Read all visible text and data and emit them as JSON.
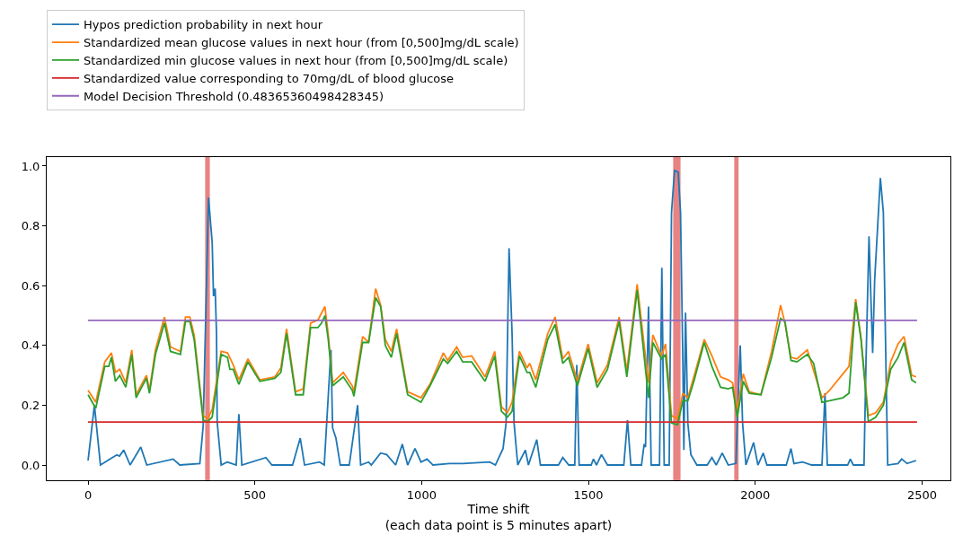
{
  "chart_data": {
    "type": "line",
    "xlabel": "Time shift\n(each data point is 5 minutes apart)",
    "xlim": [
      -124,
      2585
    ],
    "ylim": [
      -0.051,
      1.03
    ],
    "xticks": [
      0,
      500,
      1000,
      1500,
      2000,
      2500
    ],
    "yticks": [
      {
        "value": 0,
        "label": "0.0"
      },
      0.2,
      0.4,
      0.6,
      0.8,
      {
        "value": 1,
        "label": "1.0"
      }
    ],
    "grid": false,
    "legend": "top left",
    "marker": "none",
    "line_style": "solid",
    "bands": [
      {
        "axis": "x",
        "from": 351,
        "to": 365,
        "color": "#e88384"
      },
      {
        "axis": "x",
        "from": 1754,
        "to": 1776,
        "color": "#e88384"
      },
      {
        "axis": "x",
        "from": 1937,
        "to": 1950,
        "color": "#e88384"
      }
    ],
    "series": [
      {
        "name": "Hypos prediction probability in next hour",
        "color": "#1f77b4",
        "x": [
          0,
          19,
          37,
          86,
          94,
          107,
          126,
          158,
          176,
          255,
          275,
          335,
          345,
          361,
          372,
          376,
          381,
          385,
          387,
          399,
          417,
          444,
          452,
          461,
          533,
          551,
          613,
          636,
          649,
          694,
          708,
          728,
          733,
          743,
          756,
          783,
          808,
          817,
          841,
          849,
          877,
          895,
          922,
          942,
          958,
          980,
          998,
          1016,
          1034,
          1083,
          1123,
          1204,
          1221,
          1244,
          1253,
          1262,
          1271,
          1277,
          1288,
          1311,
          1320,
          1345,
          1356,
          1410,
          1423,
          1441,
          1459,
          1465,
          1472,
          1508,
          1515,
          1524,
          1539,
          1557,
          1606,
          1617,
          1627,
          1659,
          1667,
          1671,
          1680,
          1688,
          1700,
          1713,
          1720,
          1727,
          1742,
          1749,
          1758,
          1769,
          1776,
          1783,
          1786,
          1791,
          1798,
          1807,
          1825,
          1856,
          1870,
          1883,
          1901,
          1919,
          1942,
          1947,
          1955,
          1962,
          1972,
          1995,
          2008,
          2024,
          2035,
          2093,
          2107,
          2116,
          2142,
          2169,
          2200,
          2209,
          2216,
          2277,
          2285,
          2294,
          2326,
          2332,
          2341,
          2346,
          2352,
          2358,
          2375,
          2384,
          2393,
          2397,
          2428,
          2439,
          2455,
          2482
        ],
        "values": [
          0.015,
          0.2,
          0.0,
          0.034,
          0.03,
          0.05,
          0.0,
          0.06,
          0.0,
          0.02,
          0.0,
          0.005,
          0.13,
          0.895,
          0.745,
          0.565,
          0.59,
          0.44,
          0.144,
          0.0,
          0.01,
          0.0,
          0.17,
          0.0,
          0.025,
          0.0,
          0.0,
          0.09,
          0.0,
          0.01,
          0.0,
          0.385,
          0.124,
          0.09,
          0.0,
          0.0,
          0.2,
          0.0,
          0.01,
          0.0,
          0.04,
          0.035,
          0.0,
          0.07,
          0.0,
          0.055,
          0.01,
          0.02,
          0.0,
          0.005,
          0.005,
          0.01,
          0.0,
          0.055,
          0.14,
          0.725,
          0.44,
          0.14,
          0.0,
          0.05,
          0.0,
          0.085,
          0.0,
          0.0,
          0.025,
          0.0,
          0.0,
          0.335,
          0.0,
          0.0,
          0.02,
          0.0,
          0.035,
          0.0,
          0.0,
          0.15,
          0.0,
          0.0,
          0.07,
          0.06,
          0.53,
          0.0,
          0.0,
          0.0,
          0.66,
          0.0,
          0.0,
          0.845,
          0.985,
          0.98,
          0.845,
          0.345,
          0.05,
          0.51,
          0.14,
          0.035,
          0.0,
          0.0,
          0.025,
          0.0,
          0.04,
          0.0,
          0.005,
          0.165,
          0.4,
          0.14,
          0.0,
          0.075,
          0.0,
          0.04,
          0.0,
          0.0,
          0.055,
          0.005,
          0.01,
          0.0,
          0.0,
          0.24,
          0.0,
          0.0,
          0.02,
          0.0,
          0.0,
          0.345,
          0.765,
          0.58,
          0.375,
          0.62,
          0.96,
          0.845,
          0.255,
          0.0,
          0.005,
          0.02,
          0.005,
          0.015
        ]
      },
      {
        "name": "Standardized mean glucose values in next hour (from [0,500]mg/dL scale)",
        "color": "#ff7f0e",
        "x": [
          0,
          23,
          50,
          70,
          82,
          95,
          113,
          131,
          144,
          175,
          184,
          202,
          229,
          247,
          277,
          292,
          305,
          318,
          345,
          358,
          372,
          399,
          418,
          435,
          452,
          479,
          515,
          560,
          578,
          595,
          622,
          645,
          667,
          689,
          710,
          720,
          733,
          765,
          792,
          797,
          823,
          841,
          862,
          877,
          891,
          909,
          925,
          958,
          998,
          1025,
          1065,
          1078,
          1105,
          1123,
          1150,
          1190,
          1219,
          1239,
          1257,
          1271,
          1293,
          1316,
          1324,
          1342,
          1378,
          1400,
          1423,
          1440,
          1467,
          1499,
          1526,
          1557,
          1592,
          1615,
          1646,
          1680,
          1693,
          1719,
          1731,
          1749,
          1767,
          1783,
          1798,
          1816,
          1847,
          1870,
          1896,
          1919,
          1932,
          1946,
          1964,
          1982,
          2017,
          2049,
          2076,
          2089,
          2107,
          2125,
          2156,
          2200,
          2223,
          2263,
          2281,
          2301,
          2317,
          2339,
          2361,
          2384,
          2406,
          2428,
          2446,
          2469,
          2482
        ],
        "values": [
          0.25,
          0.21,
          0.345,
          0.375,
          0.31,
          0.32,
          0.275,
          0.385,
          0.235,
          0.3,
          0.25,
          0.385,
          0.495,
          0.395,
          0.38,
          0.495,
          0.495,
          0.435,
          0.165,
          0.155,
          0.185,
          0.38,
          0.375,
          0.335,
          0.285,
          0.355,
          0.285,
          0.295,
          0.325,
          0.455,
          0.245,
          0.255,
          0.475,
          0.485,
          0.53,
          0.435,
          0.275,
          0.31,
          0.265,
          0.245,
          0.43,
          0.41,
          0.59,
          0.535,
          0.42,
          0.38,
          0.455,
          0.245,
          0.225,
          0.27,
          0.375,
          0.35,
          0.395,
          0.36,
          0.365,
          0.295,
          0.38,
          0.195,
          0.175,
          0.21,
          0.38,
          0.325,
          0.34,
          0.285,
          0.44,
          0.495,
          0.355,
          0.38,
          0.28,
          0.405,
          0.275,
          0.335,
          0.495,
          0.315,
          0.605,
          0.275,
          0.435,
          0.365,
          0.405,
          0.165,
          0.155,
          0.24,
          0.225,
          0.295,
          0.42,
          0.365,
          0.295,
          0.285,
          0.275,
          0.185,
          0.305,
          0.245,
          0.235,
          0.38,
          0.535,
          0.475,
          0.36,
          0.355,
          0.385,
          0.225,
          0.25,
          0.305,
          0.33,
          0.555,
          0.425,
          0.165,
          0.175,
          0.21,
          0.345,
          0.405,
          0.43,
          0.3,
          0.295
        ]
      },
      {
        "name": "Standardized min glucose values in next hour (from [0,500]mg/dL scale)",
        "color": "#2ca02c",
        "x": [
          0,
          23,
          50,
          62,
          70,
          82,
          95,
          113,
          131,
          144,
          175,
          184,
          202,
          229,
          247,
          277,
          292,
          305,
          318,
          345,
          358,
          372,
          399,
          418,
          425,
          435,
          452,
          479,
          515,
          560,
          578,
          595,
          622,
          645,
          667,
          689,
          700,
          710,
          720,
          733,
          765,
          792,
          797,
          823,
          841,
          862,
          877,
          891,
          909,
          925,
          958,
          998,
          1025,
          1065,
          1078,
          1105,
          1123,
          1150,
          1190,
          1219,
          1239,
          1257,
          1271,
          1293,
          1316,
          1324,
          1342,
          1378,
          1400,
          1423,
          1440,
          1467,
          1499,
          1526,
          1557,
          1592,
          1615,
          1646,
          1680,
          1693,
          1719,
          1731,
          1749,
          1767,
          1783,
          1798,
          1816,
          1847,
          1870,
          1896,
          1919,
          1932,
          1946,
          1964,
          1982,
          2017,
          2049,
          2076,
          2089,
          2107,
          2125,
          2156,
          2175,
          2200,
          2223,
          2263,
          2281,
          2301,
          2317,
          2339,
          2361,
          2384,
          2406,
          2428,
          2446,
          2469,
          2482
        ],
        "values": [
          0.235,
          0.19,
          0.33,
          0.33,
          0.36,
          0.28,
          0.3,
          0.26,
          0.37,
          0.225,
          0.29,
          0.24,
          0.37,
          0.475,
          0.38,
          0.37,
          0.48,
          0.48,
          0.42,
          0.15,
          0.145,
          0.16,
          0.37,
          0.36,
          0.32,
          0.32,
          0.27,
          0.345,
          0.28,
          0.29,
          0.31,
          0.44,
          0.235,
          0.235,
          0.46,
          0.46,
          0.475,
          0.5,
          0.42,
          0.265,
          0.295,
          0.25,
          0.23,
          0.41,
          0.41,
          0.56,
          0.53,
          0.4,
          0.36,
          0.44,
          0.235,
          0.21,
          0.265,
          0.355,
          0.34,
          0.38,
          0.345,
          0.345,
          0.28,
          0.365,
          0.18,
          0.16,
          0.18,
          0.365,
          0.31,
          0.31,
          0.26,
          0.42,
          0.47,
          0.34,
          0.36,
          0.265,
          0.39,
          0.26,
          0.32,
          0.48,
          0.295,
          0.585,
          0.225,
          0.41,
          0.355,
          0.37,
          0.14,
          0.135,
          0.215,
          0.215,
          0.28,
          0.41,
          0.33,
          0.26,
          0.255,
          0.26,
          0.16,
          0.28,
          0.24,
          0.235,
          0.36,
          0.49,
          0.48,
          0.35,
          0.345,
          0.37,
          0.34,
          0.21,
          0.215,
          0.225,
          0.24,
          0.545,
          0.42,
          0.145,
          0.16,
          0.2,
          0.32,
          0.36,
          0.41,
          0.285,
          0.275
        ]
      },
      {
        "name": "Standardized value corresponding to 70mg/dL of blood glucose",
        "color": "#d62728",
        "x": [
          0,
          2485
        ],
        "values": [
          0.144,
          0.144
        ]
      },
      {
        "name": "Model Decision Threshold (0.48365360498428345)",
        "color": "#9467bd",
        "x": [
          0,
          2485
        ],
        "values": [
          0.48365360498428345,
          0.48365360498428345
        ]
      }
    ]
  }
}
